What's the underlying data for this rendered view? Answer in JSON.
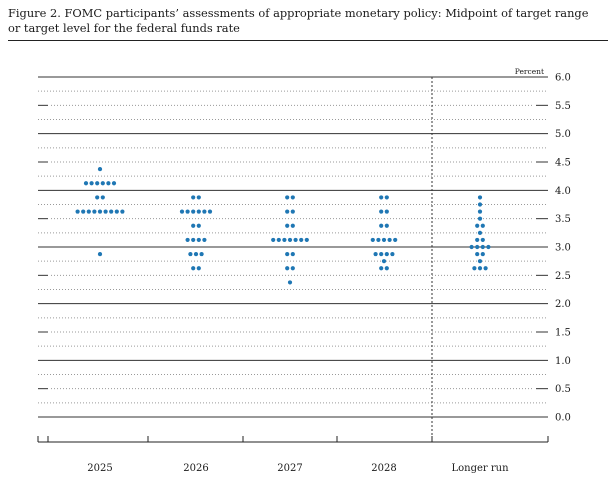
{
  "title_lines": [
    "Figure 2. FOMC participants’ assessments of appropriate monetary policy: Midpoint of target range",
    "or target level for the federal funds rate"
  ],
  "chart_data": {
    "type": "scatter",
    "title": "Figure 2. FOMC participants’ assessments of appropriate monetary policy: Midpoint of target range or target level for the federal funds rate",
    "unit_label": "Percent",
    "ylim": [
      0.0,
      6.0
    ],
    "y_ticks": [
      "6.0",
      "5.5",
      "5.0",
      "4.5",
      "4.0",
      "3.5",
      "3.0",
      "2.5",
      "2.0",
      "1.5",
      "1.0",
      "0.5",
      "0.0"
    ],
    "categories": [
      "2025",
      "2026",
      "2027",
      "2028",
      "Longer run"
    ],
    "dot_color": "#1f77b4",
    "dots": [
      {
        "category": "2025",
        "levels": [
          {
            "y": 4.375,
            "count": 1
          },
          {
            "y": 4.125,
            "count": 6
          },
          {
            "y": 3.875,
            "count": 2
          },
          {
            "y": 3.625,
            "count": 9
          },
          {
            "y": 2.875,
            "count": 1
          }
        ]
      },
      {
        "category": "2026",
        "levels": [
          {
            "y": 3.875,
            "count": 2
          },
          {
            "y": 3.625,
            "count": 6
          },
          {
            "y": 3.375,
            "count": 2
          },
          {
            "y": 3.125,
            "count": 4
          },
          {
            "y": 2.875,
            "count": 3
          },
          {
            "y": 2.625,
            "count": 2
          }
        ]
      },
      {
        "category": "2027",
        "levels": [
          {
            "y": 3.875,
            "count": 2
          },
          {
            "y": 3.625,
            "count": 2
          },
          {
            "y": 3.375,
            "count": 2
          },
          {
            "y": 3.125,
            "count": 7
          },
          {
            "y": 2.875,
            "count": 2
          },
          {
            "y": 2.625,
            "count": 2
          },
          {
            "y": 2.375,
            "count": 1
          }
        ]
      },
      {
        "category": "2028",
        "levels": [
          {
            "y": 3.875,
            "count": 2
          },
          {
            "y": 3.625,
            "count": 2
          },
          {
            "y": 3.375,
            "count": 2
          },
          {
            "y": 3.125,
            "count": 5
          },
          {
            "y": 2.875,
            "count": 4
          },
          {
            "y": 2.75,
            "count": 1
          },
          {
            "y": 2.625,
            "count": 2
          }
        ]
      },
      {
        "category": "Longer run",
        "levels": [
          {
            "y": 3.875,
            "count": 1
          },
          {
            "y": 3.75,
            "count": 1
          },
          {
            "y": 3.625,
            "count": 1
          },
          {
            "y": 3.5,
            "count": 1
          },
          {
            "y": 3.375,
            "count": 2
          },
          {
            "y": 3.25,
            "count": 1
          },
          {
            "y": 3.125,
            "count": 2
          },
          {
            "y": 3.0,
            "count": 4
          },
          {
            "y": 2.875,
            "count": 2
          },
          {
            "y": 2.75,
            "count": 1
          },
          {
            "y": 2.625,
            "count": 3
          }
        ]
      }
    ]
  }
}
